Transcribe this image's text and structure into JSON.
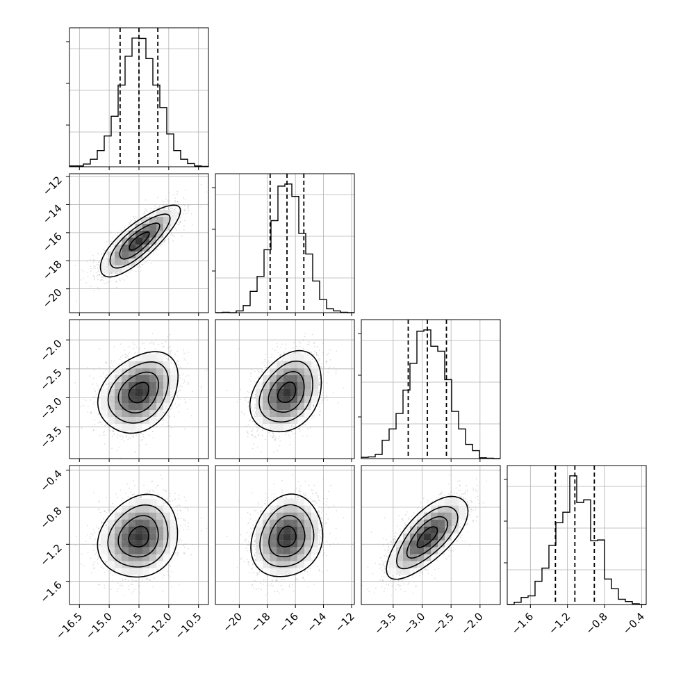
{
  "chart_data": {
    "type": "corner",
    "parameters": [
      {
        "range": [
          -17.0,
          -10.0
        ],
        "ticks": [
          -16.5,
          -15.0,
          -13.5,
          -12.0,
          -10.5
        ],
        "tick_labels": [
          "−16.5",
          "−15.0",
          "−13.5",
          "−12.0",
          "−10.5"
        ],
        "mean": -13.5,
        "sigma": 0.95,
        "quantiles": [
          -14.45,
          -13.5,
          -12.55
        ]
      },
      {
        "range": [
          -21.7,
          -11.8
        ],
        "ticks": [
          -20,
          -18,
          -16,
          -14,
          -12
        ],
        "tick_labels": [
          "−20",
          "−18",
          "−16",
          "−14",
          "−12"
        ],
        "mean": -16.6,
        "sigma": 1.2,
        "quantiles": [
          -17.8,
          -16.6,
          -15.4
        ]
      },
      {
        "range": [
          -4.05,
          -1.65
        ],
        "ticks": [
          -3.5,
          -3.0,
          -2.5,
          -2.0
        ],
        "tick_labels": [
          "−3.5",
          "−3.0",
          "−2.5",
          "−2.0"
        ],
        "mean": -2.91,
        "sigma": 0.33,
        "quantiles": [
          -3.24,
          -2.91,
          -2.58
        ]
      },
      {
        "range": [
          -1.85,
          -0.35
        ],
        "ticks": [
          -1.6,
          -1.2,
          -0.8,
          -0.4
        ],
        "tick_labels": [
          "−1.6",
          "−1.2",
          "−0.8",
          "−0.4"
        ],
        "mean": -1.12,
        "sigma": 0.21,
        "quantiles": [
          -1.33,
          -1.12,
          -0.91
        ]
      }
    ],
    "correlations": [
      [
        1,
        2,
        0.8
      ],
      [
        1,
        3,
        0.3
      ],
      [
        2,
        3,
        0.3
      ],
      [
        1,
        4,
        0.15
      ],
      [
        2,
        4,
        0.15
      ],
      [
        3,
        4,
        0.7
      ]
    ],
    "grid": true,
    "legend": false,
    "colors": {
      "hist": "#000000",
      "scatter": "#9a9a9a",
      "density_dark": "#000000",
      "density_light": "#ffffff"
    }
  }
}
